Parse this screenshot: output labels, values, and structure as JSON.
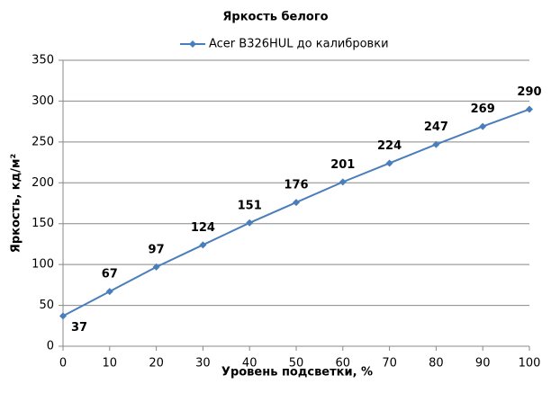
{
  "chart_data": {
    "type": "line",
    "title": "Яркость белого",
    "x": [
      0,
      10,
      20,
      30,
      40,
      50,
      60,
      70,
      80,
      90,
      100
    ],
    "series": [
      {
        "name": "Acer B326HUL  до калибровки",
        "color": "#4a7ebb",
        "values": [
          37,
          67,
          97,
          124,
          151,
          176,
          201,
          224,
          247,
          269,
          290
        ]
      }
    ],
    "xlabel": "Уровень подсветки, %",
    "ylabel": "Яркость, кд/м²",
    "xlim": [
      0,
      100
    ],
    "xticks": [
      0,
      10,
      20,
      30,
      40,
      50,
      60,
      70,
      80,
      90,
      100
    ],
    "ylim": [
      0,
      350
    ],
    "yticks": [
      0,
      50,
      100,
      150,
      200,
      250,
      300,
      350
    ],
    "grid": true,
    "legend": "top"
  }
}
